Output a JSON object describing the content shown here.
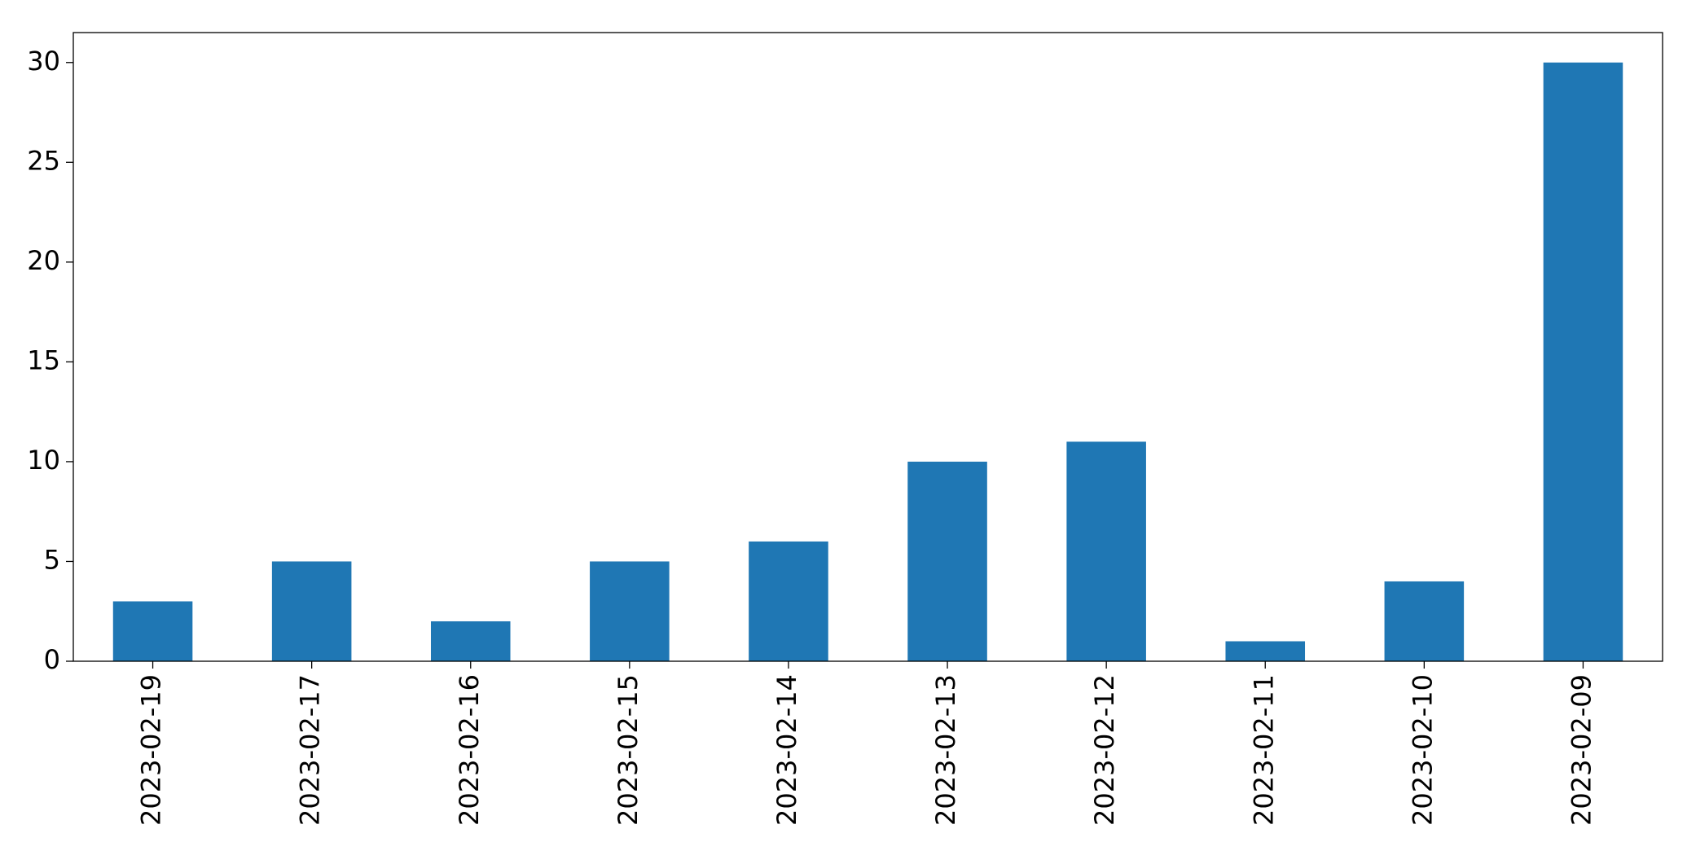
{
  "chart_data": {
    "type": "bar",
    "categories": [
      "2023-02-19",
      "2023-02-17",
      "2023-02-16",
      "2023-02-15",
      "2023-02-14",
      "2023-02-13",
      "2023-02-12",
      "2023-02-11",
      "2023-02-10",
      "2023-02-09"
    ],
    "values": [
      3,
      5,
      2,
      5,
      6,
      10,
      11,
      1,
      4,
      30
    ],
    "color": "#1f77b4",
    "ylim": [
      0,
      31.5
    ],
    "yticks": [
      0,
      5,
      10,
      15,
      20,
      25,
      30
    ],
    "grid": false
  }
}
